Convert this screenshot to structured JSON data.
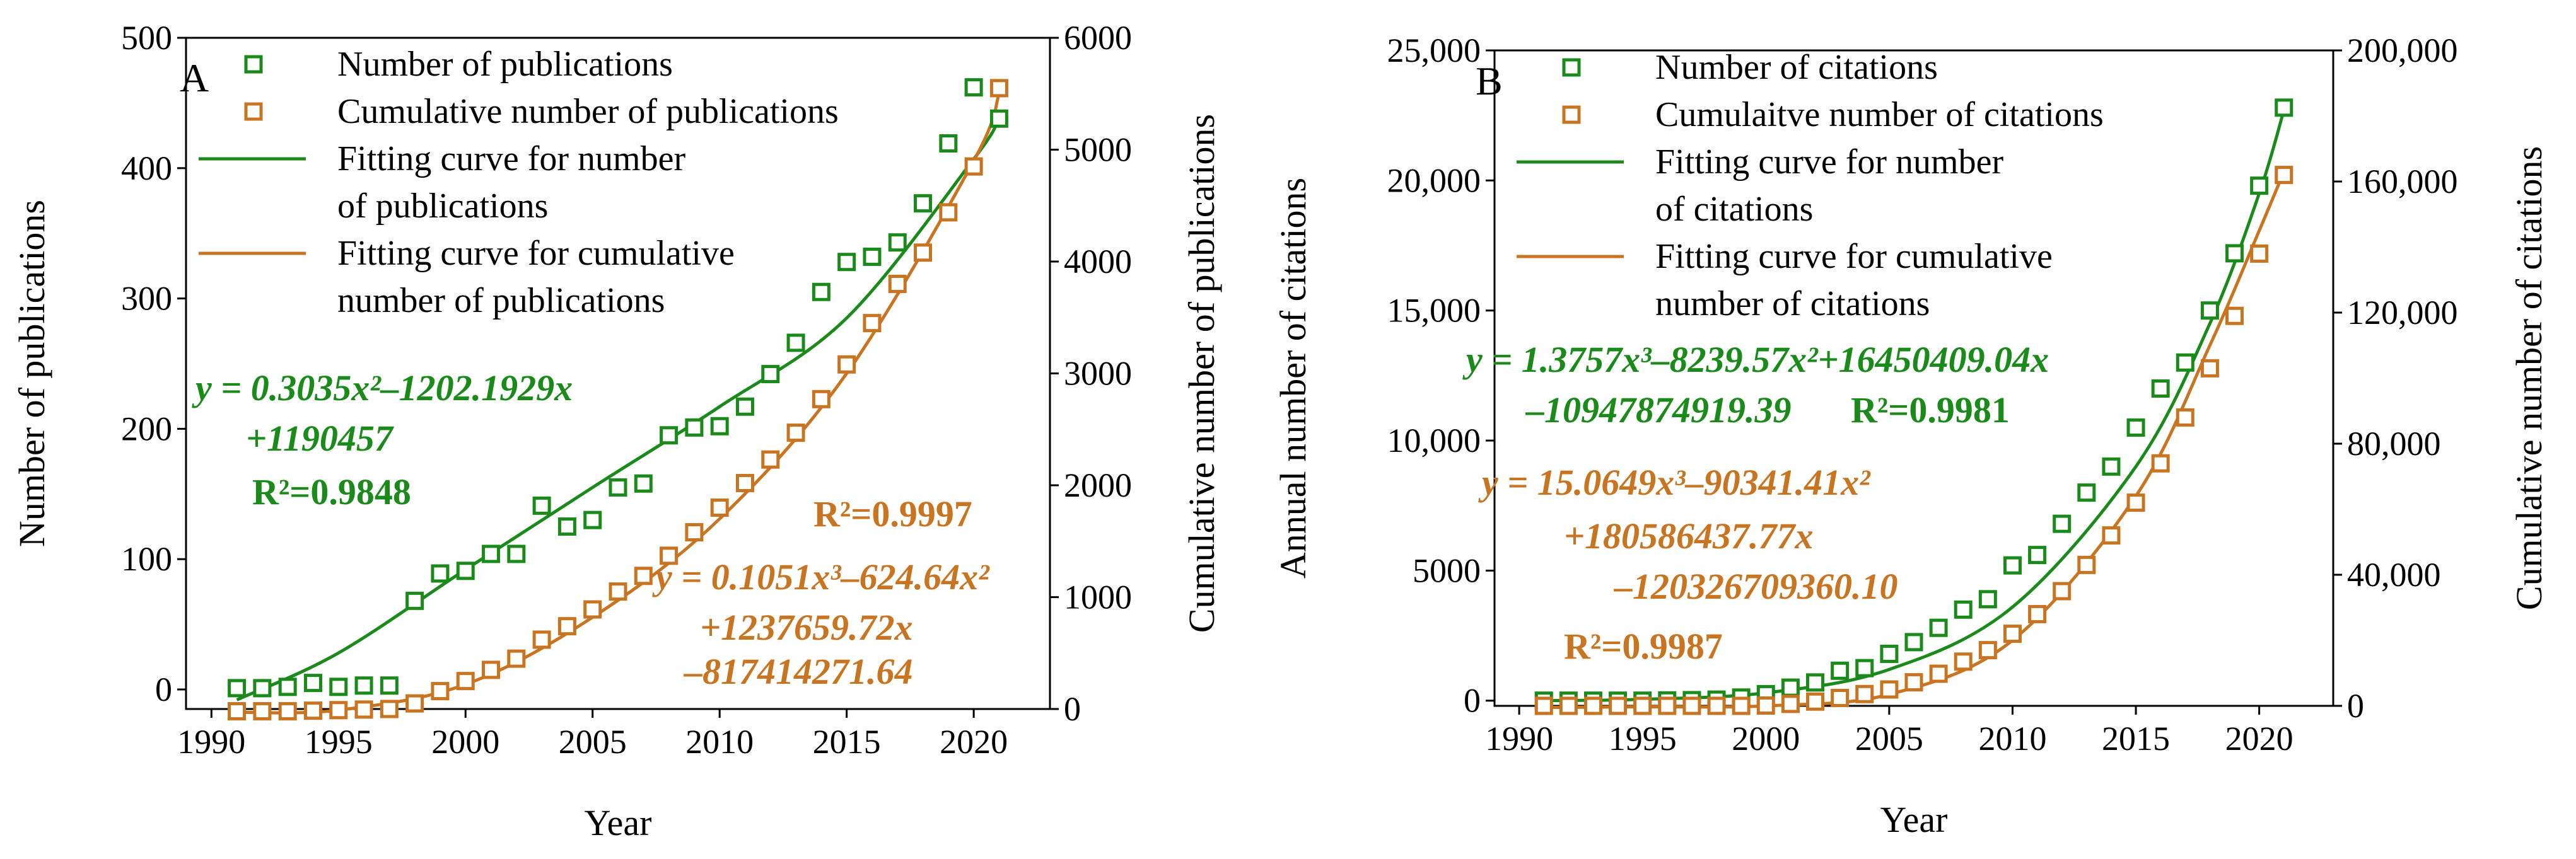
{
  "colors": {
    "green": "#1a8a1a",
    "orange": "#c87420"
  },
  "chart_data": [
    {
      "type": "scatter",
      "panel_label": "A",
      "xlabel": "Year",
      "ylabel_left": "Number of publications",
      "ylabel_right": "Cumulative number of  publications",
      "x_ticks": [
        "1990",
        "1995",
        "2000",
        "2005",
        "2010",
        "2015",
        "2020"
      ],
      "y_left_ticks": [
        "0",
        "100",
        "200",
        "300",
        "400",
        "500"
      ],
      "y_right_ticks": [
        "0",
        "1000",
        "2000",
        "3000",
        "4000",
        "5000",
        "6000"
      ],
      "xlim": [
        1989,
        2023
      ],
      "ylim_left": [
        -15,
        500
      ],
      "ylim_right": [
        0,
        6000
      ],
      "legend": [
        {
          "kind": "marker",
          "color": "green",
          "lines": [
            "Number of publications"
          ]
        },
        {
          "kind": "marker",
          "color": "orange",
          "lines": [
            "Cumulative number of publications"
          ]
        },
        {
          "kind": "line",
          "color": "green",
          "lines": [
            "Fitting curve for number",
            " of publications"
          ]
        },
        {
          "kind": "line",
          "color": "orange",
          "lines": [
            "Fitting curve for cumulative",
            "number of publications"
          ]
        }
      ],
      "annotations": [
        {
          "color": "green",
          "cls": "eq",
          "text": "y = 0.3035x²–1202.1929x"
        },
        {
          "color": "green",
          "cls": "eq",
          "text": "+1190457"
        },
        {
          "color": "green",
          "cls": "r2",
          "text": "R²=0.9848"
        },
        {
          "color": "orange",
          "cls": "r2",
          "text": "R²=0.9997"
        },
        {
          "color": "orange",
          "cls": "eq",
          "text": "y = 0.1051x³–624.64x²"
        },
        {
          "color": "orange",
          "cls": "eq",
          "text": "+1237659.72x"
        },
        {
          "color": "orange",
          "cls": "eq",
          "text": "–817414271.64"
        }
      ],
      "series": [
        {
          "name": "Number of publications",
          "axis": "left",
          "color": "green",
          "x": [
            1991,
            1992,
            1993,
            1994,
            1995,
            1996,
            1997,
            1998,
            1999,
            2000,
            2001,
            2002,
            2003,
            2004,
            2005,
            2006,
            2007,
            2008,
            2009,
            2010,
            2011,
            2012,
            2013,
            2014,
            2015,
            2016,
            2017,
            2018,
            2019,
            2020,
            2021
          ],
          "y": [
            1,
            1,
            2,
            5,
            2,
            3,
            3,
            68,
            89,
            91,
            104,
            104,
            141,
            125,
            130,
            155,
            158,
            195,
            201,
            202,
            217,
            242,
            266,
            305,
            328,
            332,
            343,
            373,
            419,
            462,
            438
          ]
        },
        {
          "name": "Cumulative number of publications",
          "axis": "right",
          "color": "orange",
          "x": [
            1991,
            1992,
            1993,
            1994,
            1995,
            1996,
            1997,
            1998,
            1999,
            2000,
            2001,
            2002,
            2003,
            2004,
            2005,
            2006,
            2007,
            2008,
            2009,
            2010,
            2011,
            2012,
            2013,
            2014,
            2015,
            2016,
            2017,
            2018,
            2019,
            2020,
            2021
          ],
          "y": [
            -20,
            -20,
            -20,
            -15,
            -10,
            -5,
            0,
            50,
            160,
            250,
            350,
            450,
            620,
            740,
            890,
            1050,
            1190,
            1370,
            1580,
            1800,
            2020,
            2230,
            2470,
            2770,
            3080,
            3450,
            3800,
            4080,
            4440,
            4850,
            5550
          ]
        }
      ],
      "fits": [
        {
          "name": "Fitting curve for number of publications",
          "axis": "left",
          "color": "green",
          "x": [
            1991,
            1995,
            2000,
            2005,
            2010,
            2015,
            2020,
            2021
          ],
          "y": [
            -8,
            28,
            92,
            155,
            217,
            285,
            407,
            438
          ]
        },
        {
          "name": "Fitting curve for cumulative number of publications",
          "axis": "right",
          "color": "orange",
          "x": [
            1991,
            1995,
            2000,
            2005,
            2010,
            2015,
            2020,
            2021
          ],
          "y": [
            -30,
            -10,
            220,
            820,
            1700,
            3000,
            4900,
            5500
          ]
        }
      ]
    },
    {
      "type": "scatter",
      "panel_label": "B",
      "xlabel": "Year",
      "ylabel_left": "Annual number of citations",
      "ylabel_right": "Cumulative number of  citations",
      "x_ticks": [
        "1990",
        "1995",
        "2000",
        "2005",
        "2010",
        "2015",
        "2020"
      ],
      "y_left_ticks": [
        "0",
        "5000",
        "10,000",
        "15,000",
        "20,000",
        "25,000"
      ],
      "y_right_ticks": [
        "0",
        "40,000",
        "80,000",
        "120,000",
        "160,000",
        "200,000"
      ],
      "xlim": [
        1989,
        2023
      ],
      "ylim_left": [
        -200,
        25000
      ],
      "ylim_right": [
        0,
        200000
      ],
      "legend": [
        {
          "kind": "marker",
          "color": "green",
          "lines": [
            "Number of citations"
          ]
        },
        {
          "kind": "marker",
          "color": "orange",
          "lines": [
            "Cumulaitve number of citations"
          ]
        },
        {
          "kind": "line",
          "color": "green",
          "lines": [
            "Fitting curve for number",
            "of citations"
          ]
        },
        {
          "kind": "line",
          "color": "orange",
          "lines": [
            "Fitting curve for cumulative",
            "number of citations"
          ]
        }
      ],
      "annotations": [
        {
          "color": "green",
          "cls": "eq",
          "text": "y = 1.3757x³–8239.57x²+16450409.04x"
        },
        {
          "color": "green",
          "cls": "eq",
          "text": "–10947874919.39"
        },
        {
          "color": "green",
          "cls": "r2",
          "text": "R²=0.9981"
        },
        {
          "color": "orange",
          "cls": "eq",
          "text": "y = 15.0649x³–90341.41x²"
        },
        {
          "color": "orange",
          "cls": "eq",
          "text": "+180586437.77x"
        },
        {
          "color": "orange",
          "cls": "eq",
          "text": "–120326709360.10"
        },
        {
          "color": "orange",
          "cls": "r2",
          "text": "R²=0.9987"
        }
      ],
      "series": [
        {
          "name": "Number of citations",
          "axis": "left",
          "color": "green",
          "x": [
            1991,
            1992,
            1993,
            1994,
            1995,
            1996,
            1997,
            1998,
            1999,
            2000,
            2001,
            2002,
            2003,
            2004,
            2005,
            2006,
            2007,
            2008,
            2009,
            2010,
            2011,
            2012,
            2013,
            2014,
            2015,
            2016,
            2017,
            2018,
            2019,
            2020,
            2021
          ],
          "y": [
            0,
            0,
            0,
            0,
            0,
            10,
            20,
            40,
            120,
            250,
            500,
            700,
            1150,
            1250,
            1800,
            2250,
            2800,
            3500,
            3900,
            5200,
            5600,
            6800,
            8000,
            9000,
            10500,
            12000,
            13000,
            15000,
            17200,
            19800,
            22800
          ]
        },
        {
          "name": "Cumulaitve number of citations",
          "axis": "right",
          "color": "orange",
          "x": [
            1991,
            1992,
            1993,
            1994,
            1995,
            1996,
            1997,
            1998,
            1999,
            2000,
            2001,
            2002,
            2003,
            2004,
            2005,
            2006,
            2007,
            2008,
            2009,
            2010,
            2011,
            2012,
            2013,
            2014,
            2015,
            2016,
            2017,
            2018,
            2019,
            2020,
            2021
          ],
          "y": [
            0,
            0,
            0,
            0,
            0,
            0,
            0,
            0,
            0,
            100,
            600,
            1300,
            2400,
            3600,
            5000,
            7200,
            9800,
            13500,
            17000,
            22000,
            28000,
            35000,
            43000,
            52000,
            62000,
            74000,
            88000,
            103000,
            119000,
            138000,
            162000
          ]
        }
      ],
      "fits": [
        {
          "name": "Fitting curve for number of citations",
          "axis": "left",
          "color": "green",
          "x": [
            1991,
            1995,
            2000,
            2005,
            2010,
            2015,
            2018,
            2020,
            2021
          ],
          "y": [
            0,
            50,
            300,
            1200,
            3600,
            9000,
            14500,
            19500,
            22700
          ]
        },
        {
          "name": "Fitting curve for cumulative number of citations",
          "axis": "right",
          "color": "orange",
          "x": [
            1991,
            1995,
            2000,
            2005,
            2010,
            2015,
            2018,
            2020,
            2021
          ],
          "y": [
            -500,
            -300,
            0,
            3500,
            20000,
            64000,
            110000,
            145000,
            163000
          ]
        }
      ]
    }
  ]
}
